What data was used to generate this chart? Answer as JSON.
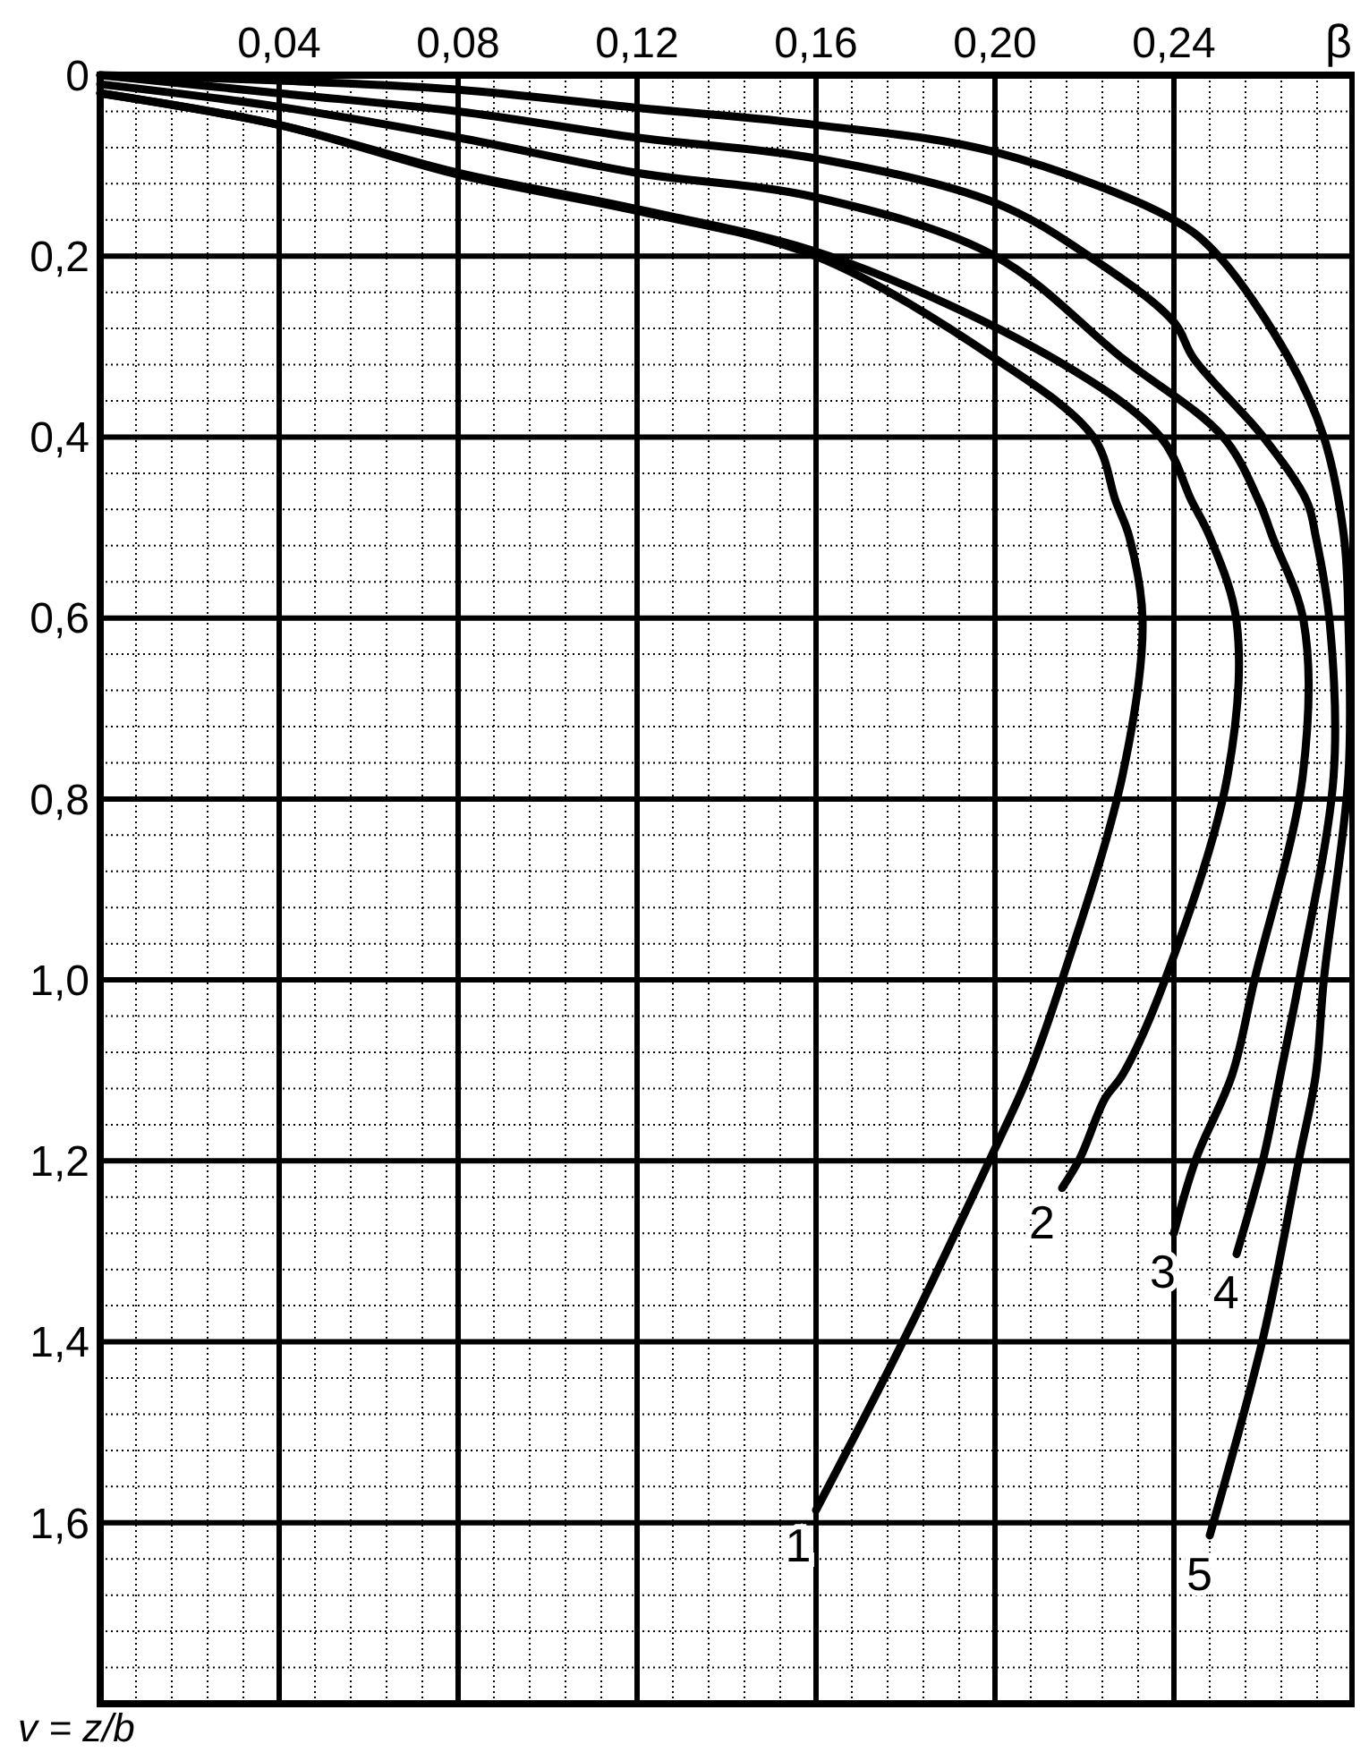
{
  "chart_data": {
    "type": "line",
    "xlabel": "β",
    "ylabel": "v = z/b",
    "xlim": [
      0,
      0.28
    ],
    "ylim": [
      1.8,
      0
    ],
    "xticks": [
      {
        "value": 0.04,
        "label": "0,04"
      },
      {
        "value": 0.08,
        "label": "0,08"
      },
      {
        "value": 0.12,
        "label": "0,12"
      },
      {
        "value": 0.16,
        "label": "0,16"
      },
      {
        "value": 0.2,
        "label": "0,20"
      },
      {
        "value": 0.24,
        "label": "0,24"
      }
    ],
    "yticks": [
      0,
      {
        "value": 0.2,
        "label": "0,2"
      },
      {
        "value": 0.4,
        "label": "0,4"
      },
      {
        "value": 0.6,
        "label": "0,6"
      },
      {
        "value": 0.8,
        "label": "0,8"
      },
      {
        "value": 1.0,
        "label": "1,0"
      },
      {
        "value": 1.2,
        "label": "1,2"
      },
      {
        "value": 1.4,
        "label": "1,4"
      },
      {
        "value": 1.6,
        "label": "1,6"
      }
    ],
    "grid": true,
    "marker": "none",
    "line_style": "solid",
    "series": [
      {
        "name": "1",
        "color": "#000000",
        "x": [
          0,
          0.04,
          0.08,
          0.12,
          0.16,
          0.2,
          0.222,
          0.227,
          0.23,
          0.233,
          0.2285,
          0.215,
          0.2075,
          0.199,
          0.18,
          0.16
        ],
        "values": [
          0.02,
          0.055,
          0.11,
          0.15,
          0.2,
          0.313,
          0.4,
          0.471,
          0.51,
          0.604,
          0.774,
          1.0,
          1.105,
          1.197,
          1.394,
          1.586
        ]
      },
      {
        "name": "2",
        "color": "#000000",
        "x": [
          0,
          0.04,
          0.08,
          0.12,
          0.163,
          0.213,
          0.237,
          0.244,
          0.248,
          0.254,
          0.252,
          0.238,
          0.2285,
          0.2246,
          0.219,
          0.215
        ],
        "values": [
          0.02,
          0.055,
          0.108,
          0.148,
          0.2,
          0.313,
          0.4,
          0.471,
          0.51,
          0.604,
          0.774,
          1.0,
          1.105,
          1.131,
          1.197,
          1.23
        ]
      },
      {
        "name": "3",
        "color": "#000000",
        "x": [
          0,
          0.04,
          0.08,
          0.12,
          0.16,
          0.2,
          0.2285,
          0.251,
          0.259,
          0.262,
          0.269,
          0.2688,
          0.258,
          0.253,
          0.245,
          0.24
        ],
        "values": [
          0.01,
          0.035,
          0.069,
          0.108,
          0.135,
          0.2,
          0.313,
          0.4,
          0.471,
          0.51,
          0.604,
          0.774,
          1.0,
          1.105,
          1.197,
          1.28
        ]
      },
      {
        "name": "4",
        "color": "#000000",
        "x": [
          0,
          0.04,
          0.08,
          0.12,
          0.16,
          0.2,
          0.221,
          0.24,
          0.2444,
          0.26,
          0.2697,
          0.2717,
          0.2748,
          0.2757,
          0.268,
          0.2638,
          0.26,
          0.254
        ],
        "values": [
          0,
          0.02,
          0.04,
          0.069,
          0.092,
          0.141,
          0.2,
          0.273,
          0.313,
          0.4,
          0.471,
          0.51,
          0.604,
          0.774,
          1.0,
          1.105,
          1.197,
          1.303
        ]
      },
      {
        "name": "5",
        "color": "#000000",
        "x": [
          0,
          0.04,
          0.08,
          0.12,
          0.16,
          0.2,
          0.24,
          0.25,
          0.2657,
          0.2735,
          0.278,
          0.279,
          0.279,
          0.2735,
          0.2717,
          0.268,
          0.26,
          0.248
        ],
        "values": [
          0,
          0.006,
          0.016,
          0.036,
          0.055,
          0.085,
          0.16,
          0.2,
          0.313,
          0.4,
          0.51,
          0.604,
          0.774,
          1.0,
          1.105,
          1.197,
          1.394,
          1.614
        ]
      }
    ]
  }
}
